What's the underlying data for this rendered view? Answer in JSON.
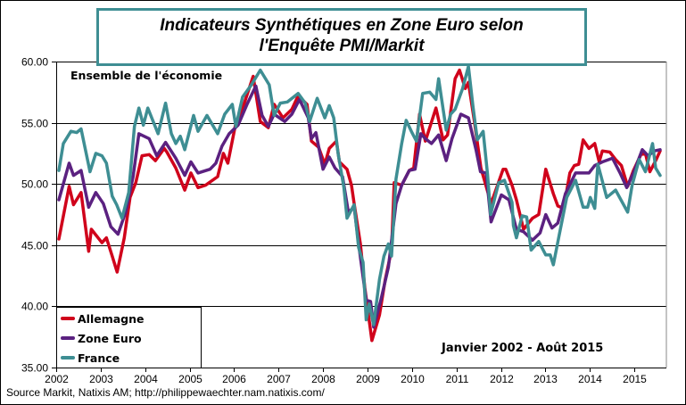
{
  "title_line1": "Indicateurs Synthétiques en Zone Euro selon",
  "title_line2": "l'Enquête PMI/Markit",
  "subtitle": "Ensemble de l'économie",
  "period": "Janvier 2002 - Août 2015",
  "source": "Source Markit, Natixis AM;  http://philippewaechter.nam.natixis.com/",
  "colors": {
    "title_border": "#3e8e93"
  },
  "chart_data": {
    "type": "line",
    "title": "Indicateurs Synthétiques en Zone Euro selon l'Enquête PMI/Markit",
    "xlabel": "",
    "ylabel": "",
    "xlim": [
      2002,
      2015.75
    ],
    "ylim": [
      35,
      60
    ],
    "x_ticks": [
      "2002",
      "2003",
      "2004",
      "2005",
      "2006",
      "2007",
      "2008",
      "2009",
      "2010",
      "2011",
      "2012",
      "2013",
      "2014",
      "2015"
    ],
    "y_ticks": [
      "35.00",
      "40.00",
      "45.00",
      "50.00",
      "55.00",
      "60.00"
    ],
    "grid": "horizontal",
    "legend_position": "bottom-left",
    "series": [
      {
        "name": "Allemagne",
        "color": "#d0021b",
        "points": [
          [
            2002.06,
            45.5
          ],
          [
            2002.29,
            49.8
          ],
          [
            2002.39,
            48.3
          ],
          [
            2002.56,
            49.3
          ],
          [
            2002.73,
            44.5
          ],
          [
            2002.79,
            46.3
          ],
          [
            2003.03,
            45.2
          ],
          [
            2003.13,
            45.6
          ],
          [
            2003.26,
            44.1
          ],
          [
            2003.37,
            42.8
          ],
          [
            2003.53,
            45.6
          ],
          [
            2003.66,
            48.9
          ],
          [
            2003.79,
            50.1
          ],
          [
            2003.93,
            52.3
          ],
          [
            2004.09,
            52.4
          ],
          [
            2004.23,
            51.9
          ],
          [
            2004.43,
            52.9
          ],
          [
            2004.49,
            52.6
          ],
          [
            2004.69,
            51.3
          ],
          [
            2004.89,
            49.5
          ],
          [
            2005.03,
            50.9
          ],
          [
            2005.19,
            49.7
          ],
          [
            2005.36,
            49.9
          ],
          [
            2005.63,
            50.6
          ],
          [
            2005.76,
            52.5
          ],
          [
            2005.86,
            51.7
          ],
          [
            2006.03,
            54.8
          ],
          [
            2006.23,
            56.6
          ],
          [
            2006.43,
            58.8
          ],
          [
            2006.59,
            55.1
          ],
          [
            2006.77,
            54.6
          ],
          [
            2006.9,
            56.5
          ],
          [
            2007.1,
            55.4
          ],
          [
            2007.3,
            56.1
          ],
          [
            2007.44,
            57.2
          ],
          [
            2007.64,
            56.5
          ],
          [
            2007.74,
            53.5
          ],
          [
            2007.9,
            53.0
          ],
          [
            2008.04,
            51.6
          ],
          [
            2008.14,
            52.9
          ],
          [
            2008.3,
            53.5
          ],
          [
            2008.37,
            51.8
          ],
          [
            2008.54,
            51.2
          ],
          [
            2008.64,
            49.9
          ],
          [
            2008.7,
            48.4
          ],
          [
            2008.84,
            45.1
          ],
          [
            2008.94,
            41.5
          ],
          [
            2009.1,
            37.2
          ],
          [
            2009.27,
            39.3
          ],
          [
            2009.4,
            42.2
          ],
          [
            2009.54,
            44.6
          ],
          [
            2009.6,
            50.1
          ],
          [
            2009.77,
            49.9
          ],
          [
            2009.94,
            51.1
          ],
          [
            2010.04,
            51.3
          ],
          [
            2010.17,
            55.7
          ],
          [
            2010.3,
            53.5
          ],
          [
            2010.4,
            54.6
          ],
          [
            2010.54,
            56.2
          ],
          [
            2010.7,
            53.6
          ],
          [
            2010.8,
            54.0
          ],
          [
            2010.97,
            58.6
          ],
          [
            2011.07,
            59.3
          ],
          [
            2011.2,
            57.8
          ],
          [
            2011.27,
            58.3
          ],
          [
            2011.4,
            55.2
          ],
          [
            2011.55,
            51.3
          ],
          [
            2011.78,
            48.4
          ],
          [
            2012.05,
            51.2
          ],
          [
            2012.11,
            51.2
          ],
          [
            2012.25,
            49.9
          ],
          [
            2012.35,
            48.7
          ],
          [
            2012.51,
            46.3
          ],
          [
            2012.71,
            47.2
          ],
          [
            2012.85,
            47.5
          ],
          [
            2013.01,
            51.2
          ],
          [
            2013.18,
            49.2
          ],
          [
            2013.28,
            48.2
          ],
          [
            2013.41,
            48.0
          ],
          [
            2013.55,
            50.9
          ],
          [
            2013.65,
            51.5
          ],
          [
            2013.75,
            51.6
          ],
          [
            2013.85,
            53.6
          ],
          [
            2013.98,
            52.9
          ],
          [
            2014.11,
            53.3
          ],
          [
            2014.21,
            51.8
          ],
          [
            2014.28,
            52.7
          ],
          [
            2014.45,
            52.6
          ],
          [
            2014.58,
            52.0
          ],
          [
            2014.71,
            51.5
          ],
          [
            2014.85,
            49.8
          ],
          [
            2014.98,
            51.1
          ],
          [
            2015.15,
            52.4
          ],
          [
            2015.25,
            52.5
          ],
          [
            2015.35,
            51.0
          ],
          [
            2015.48,
            51.9
          ],
          [
            2015.58,
            52.7
          ]
        ]
      },
      {
        "name": "Zone Euro",
        "color": "#5b2180",
        "points": [
          [
            2002.06,
            48.7
          ],
          [
            2002.29,
            51.7
          ],
          [
            2002.39,
            50.7
          ],
          [
            2002.56,
            51.1
          ],
          [
            2002.73,
            48.1
          ],
          [
            2002.89,
            49.3
          ],
          [
            2003.06,
            48.4
          ],
          [
            2003.23,
            46.5
          ],
          [
            2003.39,
            45.9
          ],
          [
            2003.56,
            47.7
          ],
          [
            2003.73,
            50.6
          ],
          [
            2003.86,
            54.1
          ],
          [
            2004.09,
            53.7
          ],
          [
            2004.26,
            52.3
          ],
          [
            2004.46,
            53.4
          ],
          [
            2004.69,
            52.1
          ],
          [
            2004.89,
            50.7
          ],
          [
            2005.03,
            51.8
          ],
          [
            2005.19,
            50.9
          ],
          [
            2005.46,
            51.2
          ],
          [
            2005.59,
            51.7
          ],
          [
            2005.73,
            53.1
          ],
          [
            2005.89,
            54.1
          ],
          [
            2006.09,
            54.8
          ],
          [
            2006.29,
            56.5
          ],
          [
            2006.49,
            58.0
          ],
          [
            2006.63,
            55.6
          ],
          [
            2006.77,
            54.7
          ],
          [
            2006.9,
            55.7
          ],
          [
            2007.14,
            55.1
          ],
          [
            2007.3,
            55.7
          ],
          [
            2007.47,
            56.9
          ],
          [
            2007.67,
            55.4
          ],
          [
            2007.74,
            53.7
          ],
          [
            2007.84,
            54.2
          ],
          [
            2008.0,
            51.2
          ],
          [
            2008.14,
            52.2
          ],
          [
            2008.27,
            51.3
          ],
          [
            2008.44,
            50.6
          ],
          [
            2008.57,
            47.7
          ],
          [
            2008.7,
            48.1
          ],
          [
            2008.8,
            45.1
          ],
          [
            2008.97,
            40.5
          ],
          [
            2009.07,
            40.4
          ],
          [
            2009.14,
            38.3
          ],
          [
            2009.3,
            40.5
          ],
          [
            2009.47,
            43.2
          ],
          [
            2009.64,
            48.4
          ],
          [
            2009.77,
            49.9
          ],
          [
            2009.94,
            51.1
          ],
          [
            2010.07,
            51.2
          ],
          [
            2010.2,
            54.1
          ],
          [
            2010.3,
            53.7
          ],
          [
            2010.44,
            53.3
          ],
          [
            2010.6,
            54.0
          ],
          [
            2010.77,
            51.9
          ],
          [
            2010.9,
            53.7
          ],
          [
            2011.1,
            55.7
          ],
          [
            2011.27,
            55.4
          ],
          [
            2011.44,
            52.8
          ],
          [
            2011.54,
            51.0
          ],
          [
            2011.67,
            50.9
          ],
          [
            2011.78,
            46.9
          ],
          [
            2012.01,
            49.1
          ],
          [
            2012.18,
            48.7
          ],
          [
            2012.35,
            46.3
          ],
          [
            2012.51,
            46.1
          ],
          [
            2012.71,
            45.4
          ],
          [
            2012.88,
            46.0
          ],
          [
            2013.01,
            47.5
          ],
          [
            2013.15,
            46.4
          ],
          [
            2013.28,
            46.8
          ],
          [
            2013.45,
            49.2
          ],
          [
            2013.68,
            50.9
          ],
          [
            2013.98,
            50.9
          ],
          [
            2014.11,
            51.5
          ],
          [
            2014.28,
            51.8
          ],
          [
            2014.51,
            52.1
          ],
          [
            2014.68,
            50.9
          ],
          [
            2014.83,
            49.7
          ],
          [
            2014.98,
            50.9
          ],
          [
            2015.18,
            52.8
          ],
          [
            2015.31,
            52.3
          ],
          [
            2015.45,
            52.7
          ],
          [
            2015.58,
            52.8
          ]
        ]
      },
      {
        "name": "France",
        "color": "#3e8e93",
        "points": [
          [
            2002.06,
            51.1
          ],
          [
            2002.16,
            53.3
          ],
          [
            2002.33,
            54.3
          ],
          [
            2002.46,
            54.2
          ],
          [
            2002.56,
            54.5
          ],
          [
            2002.76,
            51.0
          ],
          [
            2002.89,
            52.5
          ],
          [
            2003.03,
            52.3
          ],
          [
            2003.13,
            51.7
          ],
          [
            2003.26,
            49.0
          ],
          [
            2003.36,
            48.3
          ],
          [
            2003.48,
            47.2
          ],
          [
            2003.63,
            49.3
          ],
          [
            2003.76,
            54.7
          ],
          [
            2003.86,
            56.2
          ],
          [
            2003.96,
            54.8
          ],
          [
            2004.06,
            56.2
          ],
          [
            2004.29,
            54.1
          ],
          [
            2004.46,
            56.6
          ],
          [
            2004.59,
            54.1
          ],
          [
            2004.69,
            53.3
          ],
          [
            2004.79,
            53.9
          ],
          [
            2004.89,
            52.8
          ],
          [
            2005.09,
            55.6
          ],
          [
            2005.19,
            54.3
          ],
          [
            2005.39,
            55.6
          ],
          [
            2005.63,
            54.1
          ],
          [
            2005.79,
            55.7
          ],
          [
            2005.96,
            56.5
          ],
          [
            2006.04,
            54.7
          ],
          [
            2006.19,
            57.1
          ],
          [
            2006.39,
            58.1
          ],
          [
            2006.59,
            59.3
          ],
          [
            2006.79,
            58.1
          ],
          [
            2006.9,
            55.6
          ],
          [
            2007.04,
            56.6
          ],
          [
            2007.2,
            56.7
          ],
          [
            2007.44,
            57.4
          ],
          [
            2007.6,
            56.6
          ],
          [
            2007.7,
            55.1
          ],
          [
            2007.87,
            57.0
          ],
          [
            2008.04,
            55.4
          ],
          [
            2008.14,
            56.4
          ],
          [
            2008.24,
            55.4
          ],
          [
            2008.34,
            52.5
          ],
          [
            2008.47,
            49.7
          ],
          [
            2008.54,
            47.2
          ],
          [
            2008.7,
            48.3
          ],
          [
            2008.8,
            44.8
          ],
          [
            2008.9,
            43.6
          ],
          [
            2008.97,
            38.9
          ],
          [
            2009.04,
            40.2
          ],
          [
            2009.14,
            38.5
          ],
          [
            2009.27,
            42.2
          ],
          [
            2009.37,
            44.1
          ],
          [
            2009.47,
            45.1
          ],
          [
            2009.54,
            44.1
          ],
          [
            2009.64,
            50.4
          ],
          [
            2009.77,
            53.3
          ],
          [
            2009.87,
            55.2
          ],
          [
            2010.0,
            54.2
          ],
          [
            2010.1,
            53.5
          ],
          [
            2010.24,
            57.4
          ],
          [
            2010.4,
            57.5
          ],
          [
            2010.54,
            56.9
          ],
          [
            2010.6,
            58.6
          ],
          [
            2010.77,
            54.4
          ],
          [
            2010.87,
            55.7
          ],
          [
            2010.97,
            56.1
          ],
          [
            2011.14,
            57.8
          ],
          [
            2011.27,
            59.6
          ],
          [
            2011.37,
            56.4
          ],
          [
            2011.47,
            53.6
          ],
          [
            2011.6,
            54.3
          ],
          [
            2011.7,
            50.8
          ],
          [
            2011.77,
            47.5
          ],
          [
            2011.95,
            50.1
          ],
          [
            2012.08,
            50.3
          ],
          [
            2012.25,
            48.5
          ],
          [
            2012.28,
            46.6
          ],
          [
            2012.35,
            45.6
          ],
          [
            2012.48,
            47.4
          ],
          [
            2012.58,
            47.3
          ],
          [
            2012.68,
            44.6
          ],
          [
            2012.85,
            45.3
          ],
          [
            2013.01,
            44.2
          ],
          [
            2013.11,
            44.2
          ],
          [
            2013.18,
            43.4
          ],
          [
            2013.31,
            45.8
          ],
          [
            2013.48,
            48.9
          ],
          [
            2013.68,
            50.3
          ],
          [
            2013.85,
            48.1
          ],
          [
            2013.95,
            48.1
          ],
          [
            2014.01,
            48.9
          ],
          [
            2014.11,
            48.0
          ],
          [
            2014.18,
            51.6
          ],
          [
            2014.38,
            48.9
          ],
          [
            2014.58,
            49.5
          ],
          [
            2014.85,
            47.7
          ],
          [
            2014.95,
            49.9
          ],
          [
            2015.11,
            52.0
          ],
          [
            2015.25,
            51.0
          ],
          [
            2015.41,
            53.3
          ],
          [
            2015.48,
            51.3
          ],
          [
            2015.58,
            50.7
          ]
        ]
      }
    ]
  }
}
